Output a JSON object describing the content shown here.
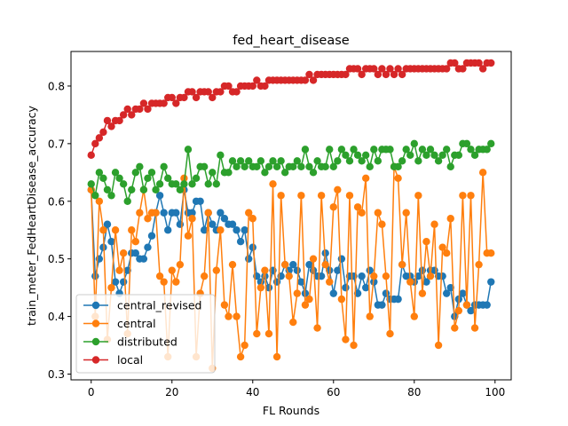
{
  "chart_data": {
    "type": "line",
    "title": "fed_heart_disease",
    "xlabel": "FL Rounds",
    "ylabel": "train_meter_FedHeartDisease_accuracy",
    "xlim": [
      -5,
      104
    ],
    "ylim": [
      0.29,
      0.86
    ],
    "xticks": [
      0,
      20,
      40,
      60,
      80,
      100
    ],
    "yticks": [
      0.3,
      0.4,
      0.5,
      0.6,
      0.7,
      0.8
    ],
    "ytick_labels": [
      "0.3",
      "0.4",
      "0.5",
      "0.6",
      "0.7",
      "0.8"
    ],
    "grid": false,
    "legend_position": "lower-left",
    "x": [
      0,
      1,
      2,
      3,
      4,
      5,
      6,
      7,
      8,
      9,
      10,
      11,
      12,
      13,
      14,
      15,
      16,
      17,
      18,
      19,
      20,
      21,
      22,
      23,
      24,
      25,
      26,
      27,
      28,
      29,
      30,
      31,
      32,
      33,
      34,
      35,
      36,
      37,
      38,
      39,
      40,
      41,
      42,
      43,
      44,
      45,
      46,
      47,
      48,
      49,
      50,
      51,
      52,
      53,
      54,
      55,
      56,
      57,
      58,
      59,
      60,
      61,
      62,
      63,
      64,
      65,
      66,
      67,
      68,
      69,
      70,
      71,
      72,
      73,
      74,
      75,
      76,
      77,
      78,
      79,
      80,
      81,
      82,
      83,
      84,
      85,
      86,
      87,
      88,
      89,
      90,
      91,
      92,
      93,
      94,
      95,
      96,
      97,
      98,
      99
    ],
    "series": [
      {
        "name": "central_revised",
        "color": "#1f77b4",
        "values": [
          0.62,
          0.47,
          0.5,
          0.52,
          0.56,
          0.53,
          0.46,
          0.44,
          0.46,
          0.48,
          0.51,
          0.51,
          0.5,
          0.5,
          0.52,
          0.54,
          0.58,
          0.61,
          0.58,
          0.55,
          0.58,
          0.58,
          0.56,
          0.62,
          0.58,
          0.58,
          0.6,
          0.6,
          0.55,
          0.58,
          0.56,
          0.55,
          0.58,
          0.57,
          0.56,
          0.56,
          0.55,
          0.53,
          0.55,
          0.5,
          0.52,
          0.47,
          0.46,
          0.47,
          0.45,
          0.48,
          0.46,
          0.47,
          0.49,
          0.48,
          0.49,
          0.48,
          0.46,
          0.44,
          0.49,
          0.48,
          0.47,
          0.47,
          0.51,
          0.48,
          0.44,
          0.48,
          0.5,
          0.45,
          0.47,
          0.47,
          0.44,
          0.47,
          0.45,
          0.48,
          0.46,
          0.42,
          0.42,
          0.44,
          0.43,
          0.43,
          0.43,
          0.49,
          0.47,
          0.47,
          0.46,
          0.47,
          0.48,
          0.46,
          0.48,
          0.48,
          0.47,
          0.47,
          0.44,
          0.45,
          0.4,
          0.43,
          0.44,
          0.42,
          0.41,
          0.42,
          0.42,
          0.42,
          0.42,
          0.46
        ]
      },
      {
        "name": "central",
        "color": "#ff7f0e",
        "values": [
          0.62,
          0.4,
          0.6,
          0.55,
          0.36,
          0.45,
          0.55,
          0.48,
          0.51,
          0.37,
          0.55,
          0.53,
          0.58,
          0.62,
          0.57,
          0.58,
          0.58,
          0.47,
          0.46,
          0.33,
          0.48,
          0.46,
          0.49,
          0.64,
          0.54,
          0.57,
          0.33,
          0.44,
          0.47,
          0.58,
          0.31,
          0.48,
          0.55,
          0.42,
          0.4,
          0.49,
          0.4,
          0.33,
          0.35,
          0.58,
          0.57,
          0.37,
          0.45,
          0.48,
          0.37,
          0.63,
          0.33,
          0.61,
          0.49,
          0.47,
          0.39,
          0.44,
          0.61,
          0.42,
          0.43,
          0.5,
          0.38,
          0.61,
          0.49,
          0.46,
          0.59,
          0.62,
          0.43,
          0.36,
          0.61,
          0.35,
          0.59,
          0.58,
          0.64,
          0.4,
          0.47,
          0.58,
          0.56,
          0.47,
          0.37,
          0.66,
          0.64,
          0.49,
          0.58,
          0.46,
          0.4,
          0.61,
          0.44,
          0.53,
          0.47,
          0.56,
          0.35,
          0.52,
          0.51,
          0.57,
          0.38,
          0.41,
          0.61,
          0.42,
          0.61,
          0.38,
          0.49,
          0.65,
          0.51,
          0.51
        ]
      },
      {
        "name": "distributed",
        "color": "#2ca02c",
        "values": [
          0.63,
          0.61,
          0.65,
          0.64,
          0.62,
          0.61,
          0.65,
          0.64,
          0.63,
          0.6,
          0.62,
          0.65,
          0.66,
          0.62,
          0.64,
          0.65,
          0.62,
          0.63,
          0.66,
          0.64,
          0.63,
          0.63,
          0.62,
          0.63,
          0.69,
          0.63,
          0.64,
          0.66,
          0.66,
          0.63,
          0.65,
          0.63,
          0.68,
          0.65,
          0.65,
          0.67,
          0.66,
          0.67,
          0.66,
          0.67,
          0.66,
          0.66,
          0.67,
          0.65,
          0.66,
          0.67,
          0.66,
          0.67,
          0.65,
          0.66,
          0.66,
          0.67,
          0.66,
          0.69,
          0.66,
          0.65,
          0.67,
          0.66,
          0.66,
          0.69,
          0.66,
          0.67,
          0.69,
          0.68,
          0.67,
          0.69,
          0.68,
          0.67,
          0.68,
          0.66,
          0.69,
          0.67,
          0.69,
          0.69,
          0.69,
          0.66,
          0.66,
          0.67,
          0.69,
          0.68,
          0.7,
          0.67,
          0.69,
          0.68,
          0.69,
          0.68,
          0.67,
          0.68,
          0.69,
          0.66,
          0.68,
          0.68,
          0.7,
          0.7,
          0.69,
          0.68,
          0.69,
          0.69,
          0.69,
          0.7
        ]
      },
      {
        "name": "local",
        "color": "#d62728",
        "values": [
          0.68,
          0.7,
          0.71,
          0.72,
          0.74,
          0.73,
          0.74,
          0.74,
          0.75,
          0.76,
          0.75,
          0.76,
          0.76,
          0.77,
          0.76,
          0.77,
          0.77,
          0.77,
          0.77,
          0.78,
          0.78,
          0.77,
          0.78,
          0.78,
          0.79,
          0.79,
          0.78,
          0.79,
          0.79,
          0.79,
          0.78,
          0.79,
          0.79,
          0.8,
          0.8,
          0.79,
          0.79,
          0.8,
          0.8,
          0.8,
          0.8,
          0.81,
          0.8,
          0.8,
          0.81,
          0.81,
          0.81,
          0.81,
          0.81,
          0.81,
          0.81,
          0.81,
          0.81,
          0.81,
          0.82,
          0.81,
          0.82,
          0.82,
          0.82,
          0.82,
          0.82,
          0.82,
          0.82,
          0.82,
          0.83,
          0.83,
          0.83,
          0.82,
          0.83,
          0.83,
          0.83,
          0.82,
          0.83,
          0.82,
          0.83,
          0.82,
          0.83,
          0.82,
          0.83,
          0.83,
          0.83,
          0.83,
          0.83,
          0.83,
          0.83,
          0.83,
          0.83,
          0.83,
          0.83,
          0.84,
          0.84,
          0.83,
          0.83,
          0.84,
          0.84,
          0.84,
          0.84,
          0.83,
          0.84,
          0.84
        ]
      }
    ]
  }
}
